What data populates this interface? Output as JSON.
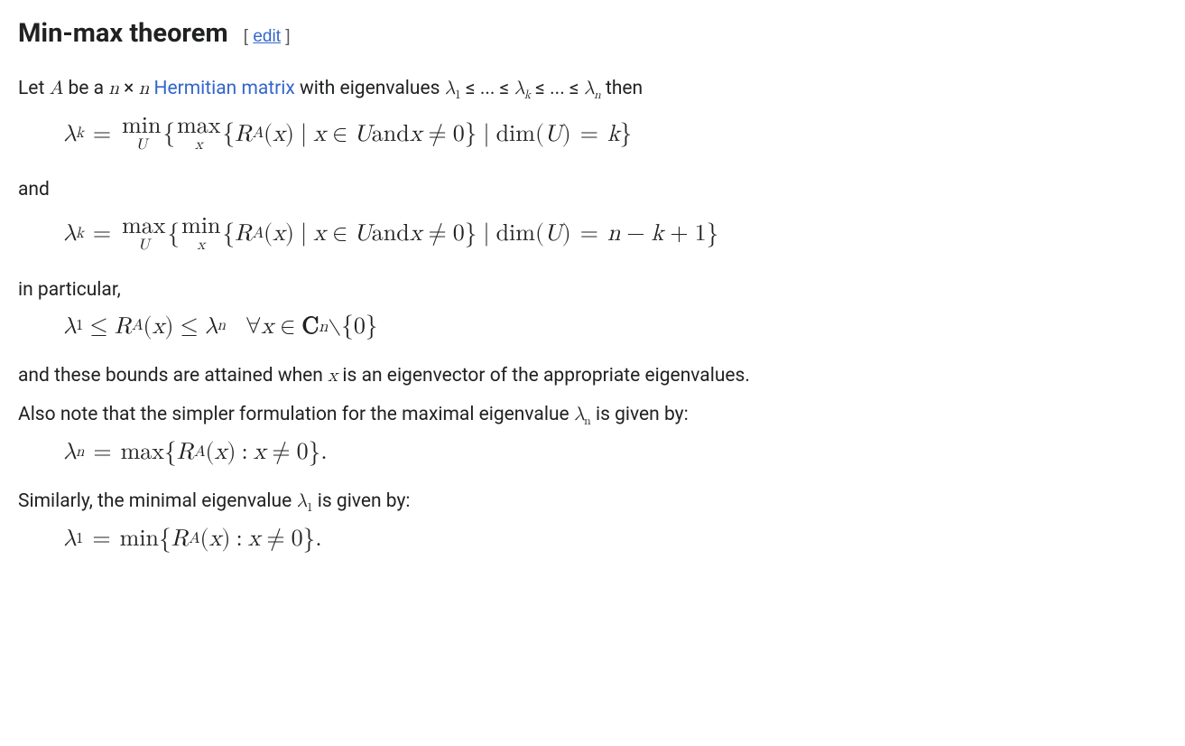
{
  "heading": "Min-max theorem",
  "edit_label": "edit",
  "intro": {
    "pre": "Let ",
    "A": "A",
    "bea": " be a ",
    "n": "n",
    "times": " × ",
    "link_text": "Hermitian matrix",
    "with_ev": " with eigenvalues ",
    "lambda": "λ",
    "le": " ≤ ",
    "dots": "... ",
    "then": " then"
  },
  "formula1": {
    "lambda": "λ",
    "k": "k",
    "eq": "=",
    "min": "min",
    "U": "U",
    "max": "max",
    "x": "x",
    "R": "R",
    "A": "A",
    "in": "∈",
    "and": " and ",
    "neq": "≠",
    "zero": "0",
    "dim": "dim",
    "dimeq": "=",
    "kval": "k"
  },
  "and_text": "and",
  "formula2": {
    "lambda": "λ",
    "k": "k",
    "eq": "=",
    "max": "max",
    "U": "U",
    "min": "min",
    "x": "x",
    "R": "R",
    "A": "A",
    "in": "∈",
    "and": " and ",
    "neq": "≠",
    "zero": "0",
    "dim": "dim",
    "rhs": "n − k + 1"
  },
  "in_particular": "in particular,",
  "formula3": {
    "lambda": "λ",
    "one": "1",
    "le": "≤",
    "R": "R",
    "A": "A",
    "x": "x",
    "n": "n",
    "forall": "∀",
    "in": "∈",
    "C": "C",
    "setminus": "∖",
    "zero": "0"
  },
  "bounds_text_pre": "and these bounds are attained when ",
  "bounds_x": "x",
  "bounds_text_post": " is an eigenvector of the appropriate eigenvalues.",
  "also_note_pre": "Also note that the simpler formulation for the maximal eigenvalue ",
  "also_note_lambda": "λ",
  "also_note_sub": "n",
  "also_note_post": " is given by:",
  "formula4": {
    "lambda": "λ",
    "n": "n",
    "eq": "=",
    "max": "max",
    "R": "R",
    "A": "A",
    "x": "x",
    "colon": ":",
    "neq": "≠",
    "zero": "0",
    "period": "."
  },
  "similarly_pre": "Similarly, the minimal eigenvalue ",
  "similarly_lambda": "λ",
  "similarly_sub": "1",
  "similarly_post": " is given by:",
  "formula5": {
    "lambda": "λ",
    "one": "1",
    "eq": "=",
    "min": "min",
    "R": "R",
    "A": "A",
    "x": "x",
    "colon": ":",
    "neq": "≠",
    "zero": "0",
    "period": "."
  }
}
